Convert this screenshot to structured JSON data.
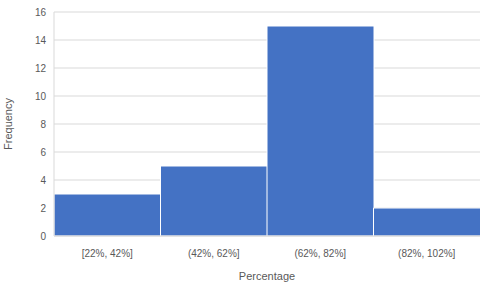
{
  "chart_data": {
    "type": "bar",
    "categories": [
      "[22%, 42%]",
      "(42%, 62%]",
      "(62%, 82%]",
      "(82%, 102%]"
    ],
    "values": [
      3,
      5,
      15,
      2
    ],
    "color": "#4472c4",
    "xlabel": "Percentage",
    "ylabel": "Frequency",
    "ylim": [
      0,
      16
    ],
    "yticks": [
      0,
      2,
      4,
      6,
      8,
      10,
      12,
      14,
      16
    ],
    "grid": true
  }
}
